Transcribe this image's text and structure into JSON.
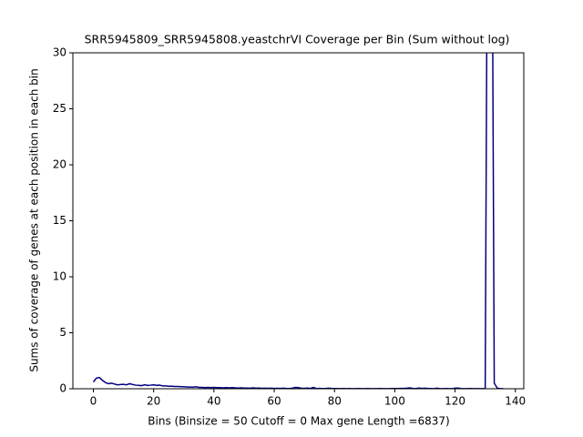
{
  "chart_data": {
    "type": "line",
    "title": "SRR5945809_SRR5945808.yeastchrVI Coverage per Bin (Sum without log)",
    "xlabel": "Bins  (Binsize = 50 Cutoff = 0 Max gene Length =6837)",
    "ylabel": "Sums of coverage of genes at each position in each bin",
    "x": [
      0,
      1,
      2,
      3,
      4,
      5,
      6,
      7,
      8,
      9,
      10,
      11,
      12,
      13,
      14,
      15,
      16,
      17,
      18,
      19,
      20,
      21,
      22,
      23,
      24,
      25,
      26,
      27,
      28,
      29,
      30,
      31,
      32,
      33,
      34,
      35,
      36,
      37,
      38,
      39,
      40,
      41,
      42,
      43,
      44,
      45,
      46,
      47,
      48,
      49,
      50,
      51,
      52,
      53,
      54,
      55,
      56,
      57,
      58,
      59,
      60,
      61,
      62,
      63,
      64,
      65,
      66,
      67,
      68,
      69,
      70,
      71,
      72,
      73,
      74,
      75,
      76,
      77,
      78,
      79,
      80,
      81,
      82,
      83,
      84,
      85,
      86,
      87,
      88,
      89,
      90,
      91,
      92,
      93,
      94,
      95,
      96,
      97,
      98,
      99,
      100,
      101,
      102,
      103,
      104,
      105,
      106,
      107,
      108,
      109,
      110,
      111,
      112,
      113,
      114,
      115,
      116,
      117,
      118,
      119,
      120,
      121,
      122,
      123,
      124,
      125,
      126,
      127,
      128,
      129,
      130,
      131,
      132,
      133,
      134,
      135,
      136
    ],
    "series": [
      {
        "color": "#000080",
        "values": [
          0.6,
          0.95,
          1.0,
          0.75,
          0.55,
          0.45,
          0.5,
          0.42,
          0.35,
          0.38,
          0.4,
          0.35,
          0.45,
          0.38,
          0.32,
          0.3,
          0.28,
          0.35,
          0.3,
          0.32,
          0.35,
          0.3,
          0.32,
          0.25,
          0.25,
          0.22,
          0.22,
          0.2,
          0.2,
          0.18,
          0.18,
          0.15,
          0.15,
          0.14,
          0.18,
          0.12,
          0.12,
          0.1,
          0.12,
          0.1,
          0.12,
          0.1,
          0.1,
          0.08,
          0.1,
          0.08,
          0.1,
          0.08,
          0.06,
          0.08,
          0.06,
          0.06,
          0.05,
          0.08,
          0.05,
          0.06,
          0.04,
          0.05,
          0.04,
          0.05,
          0.03,
          0.04,
          0.03,
          0.05,
          0.03,
          0.02,
          0.05,
          0.12,
          0.1,
          0.05,
          0.04,
          0.06,
          0.03,
          0.12,
          0.02,
          0.03,
          0.02,
          0.02,
          0.05,
          0.03,
          0.02,
          0.02,
          0.01,
          0.02,
          0.01,
          0.02,
          0.01,
          0.01,
          0.02,
          0.01,
          0.01,
          0.02,
          0.01,
          0.01,
          0.01,
          0.02,
          0.01,
          0.01,
          0.01,
          0.02,
          0.02,
          0.02,
          0.03,
          0.03,
          0.05,
          0.08,
          0.03,
          0.02,
          0.06,
          0.03,
          0.05,
          0.02,
          0.02,
          0.01,
          0.05,
          0.01,
          0.01,
          0.02,
          0.01,
          0.01,
          0.05,
          0.06,
          0.02,
          0.01,
          0.01,
          0.02,
          0.01,
          0.01,
          0.01,
          0.01,
          0.01,
          60,
          60,
          0.5,
          0.05,
          0.01,
          0.01
        ]
      }
    ],
    "xlim": [
      -6.8,
      142.8
    ],
    "ylim": [
      0,
      30
    ],
    "xticks": [
      0,
      20,
      40,
      60,
      80,
      100,
      120,
      140
    ],
    "yticks": [
      0,
      5,
      10,
      15,
      20,
      25,
      30
    ]
  }
}
